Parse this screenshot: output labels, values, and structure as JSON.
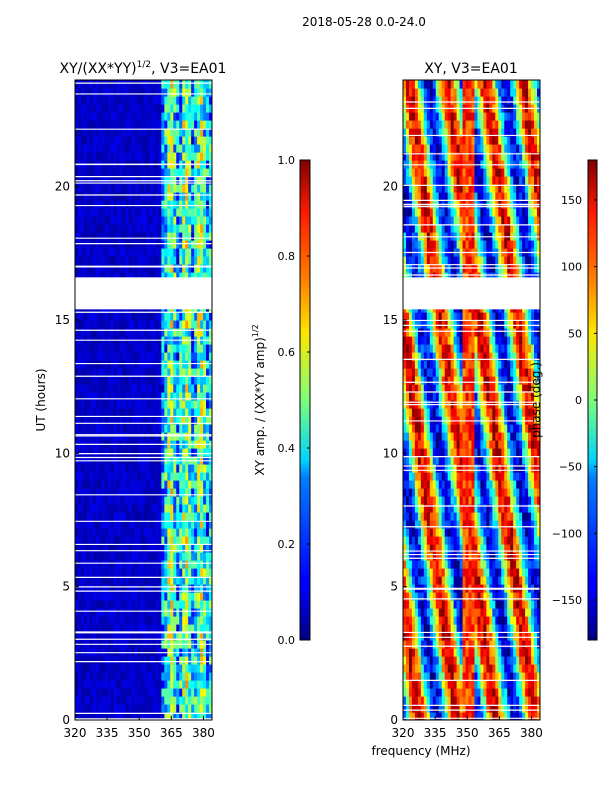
{
  "figure": {
    "suptitle": "2018-05-28 0.0-24.0",
    "shared_xlabel": "frequency (MHz)"
  },
  "chart_data": [
    {
      "type": "heatmap",
      "title_main": "XY/(XX*YY)",
      "title_exp": "1/2",
      "title_tail": ", V3=EA01",
      "xlabel": "",
      "ylabel": "UT (hours)",
      "xlim": [
        320,
        384
      ],
      "ylim": [
        0,
        24
      ],
      "xticks": [
        320,
        335,
        350,
        365,
        380
      ],
      "yticks": [
        0,
        5,
        10,
        15,
        20
      ],
      "white_gap_band_hours": [
        15.4,
        16.6
      ],
      "colorbar": {
        "label_main": "XY amp. / (XX*YY amp)",
        "label_exp": "1/2",
        "range": [
          0.0,
          1.0
        ],
        "ticks": [
          "0.0",
          "0.2",
          "0.4",
          "0.6",
          "0.8",
          "1.0"
        ],
        "tick_values": [
          0.0,
          0.2,
          0.4,
          0.6,
          0.8,
          1.0
        ],
        "colormap": "jet"
      }
    },
    {
      "type": "heatmap",
      "title_main": "XY, V3=EA01",
      "xlabel": "frequency (MHz)",
      "ylabel": "",
      "xlim": [
        320,
        384
      ],
      "ylim": [
        0,
        24
      ],
      "xticks": [
        320,
        335,
        350,
        365,
        380
      ],
      "yticks": [
        0,
        5,
        10,
        15,
        20
      ],
      "white_gap_band_hours": [
        15.4,
        16.6
      ],
      "colorbar": {
        "label_main": "phase (deg.)",
        "range": [
          -180,
          180
        ],
        "ticks": [
          "-150",
          "-100",
          "-50",
          "0",
          "50",
          "100",
          "150"
        ],
        "tick_values": [
          -150,
          -100,
          -50,
          0,
          50,
          100,
          150
        ],
        "colormap": "jet"
      }
    }
  ]
}
